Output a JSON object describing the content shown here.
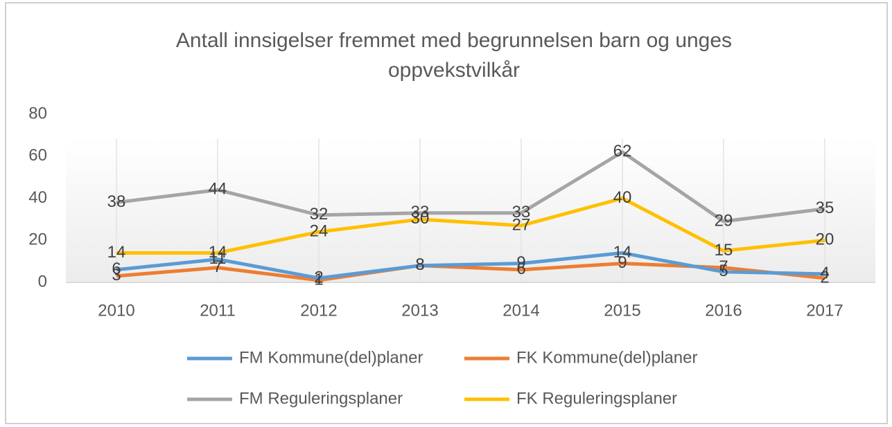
{
  "chart_data": {
    "type": "line",
    "title": [
      "Antall innsigelser fremmet med begrunnelsen barn og unges",
      "oppvekstvilkår"
    ],
    "categories": [
      "2010",
      "2011",
      "2012",
      "2013",
      "2014",
      "2015",
      "2016",
      "2017"
    ],
    "series": [
      {
        "name": "FM Kommune(del)planer",
        "color": "#5b9bd5",
        "values": [
          6,
          11,
          2,
          8,
          9,
          14,
          5,
          4
        ]
      },
      {
        "name": "FK Kommune(del)planer",
        "color": "#ed7d31",
        "values": [
          3,
          7,
          1,
          8,
          6,
          9,
          7,
          2
        ]
      },
      {
        "name": "FM Reguleringsplaner",
        "color": "#a5a5a5",
        "values": [
          38,
          44,
          32,
          33,
          33,
          62,
          29,
          35
        ]
      },
      {
        "name": "FK Reguleringsplaner",
        "color": "#ffc000",
        "values": [
          14,
          14,
          24,
          30,
          27,
          40,
          15,
          20
        ]
      }
    ],
    "ylim": [
      0,
      80
    ],
    "yticks": [
      0,
      20,
      40,
      60,
      80
    ],
    "grid": false,
    "legend": "bottom"
  }
}
